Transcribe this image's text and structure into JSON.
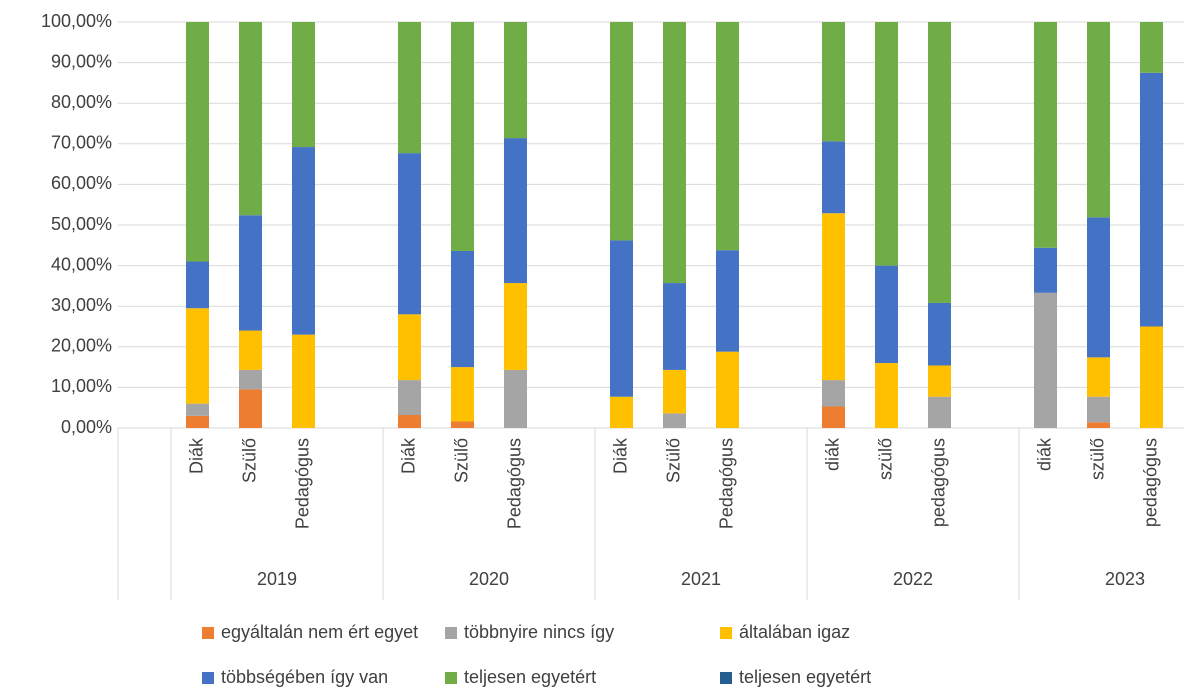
{
  "chart_data": {
    "type": "stacked_bar",
    "groups": [
      "2019",
      "2020",
      "2021",
      "2022",
      "2023"
    ],
    "categories": [
      "Diák",
      "Szülő",
      "Pedagógus",
      "Diák",
      "Szülő",
      "Pedagógus",
      "Diák",
      "Szülő",
      "Pedagógus",
      "diák",
      "szülő",
      "pedagógus",
      "diák",
      "szülő",
      "pedagógus"
    ],
    "series": [
      {
        "name": "egyáltalán nem ért egyet",
        "color": "#ED7D31",
        "values": [
          3,
          9.5,
          0,
          3.2,
          1.6,
          0,
          0,
          0,
          0,
          5.3,
          0,
          0,
          0,
          1.4,
          0
        ]
      },
      {
        "name": "többnyire nincs így",
        "color": "#A5A5A5",
        "values": [
          3,
          4.8,
          0,
          8.6,
          0,
          14.3,
          0,
          3.6,
          0,
          6.5,
          0,
          7.7,
          33.3,
          6.3,
          0
        ]
      },
      {
        "name": "általában igaz",
        "color": "#FFC000",
        "values": [
          23.5,
          9.7,
          23,
          16.2,
          13.4,
          21.4,
          7.7,
          10.7,
          18.8,
          41.1,
          16,
          7.7,
          0,
          9.7,
          25
        ]
      },
      {
        "name": "többségében így van",
        "color": "#4472C4",
        "values": [
          11.5,
          28.4,
          46.2,
          39.7,
          28.6,
          35.7,
          38.5,
          21.4,
          25,
          17.7,
          24,
          15.4,
          11.1,
          34.5,
          62.5
        ]
      },
      {
        "name": "teljesen egyetért",
        "color": "#70AD47",
        "values": [
          59,
          47.6,
          30.8,
          32.3,
          56.4,
          28.6,
          53.8,
          64.3,
          56.2,
          29.4,
          60,
          69.2,
          55.6,
          48.1,
          12.5
        ]
      },
      {
        "name": "teljesen egyetért",
        "color": "#255E91",
        "values": [
          0,
          0,
          0,
          0,
          0,
          0,
          0,
          0,
          0,
          0,
          0,
          0,
          0,
          0,
          0
        ]
      }
    ],
    "ylim": [
      0,
      100
    ],
    "yticks": [
      {
        "value": 0,
        "label": "0,00%"
      },
      {
        "value": 10,
        "label": "10,00%"
      },
      {
        "value": 20,
        "label": "20,00%"
      },
      {
        "value": 30,
        "label": "30,00%"
      },
      {
        "value": 40,
        "label": "40,00%"
      },
      {
        "value": 50,
        "label": "50,00%"
      },
      {
        "value": 60,
        "label": "60,00%"
      },
      {
        "value": 70,
        "label": "70,00%"
      },
      {
        "value": 80,
        "label": "80,00%"
      },
      {
        "value": 90,
        "label": "90,00%"
      },
      {
        "value": 100,
        "label": "100,00%"
      }
    ],
    "grid": true
  }
}
